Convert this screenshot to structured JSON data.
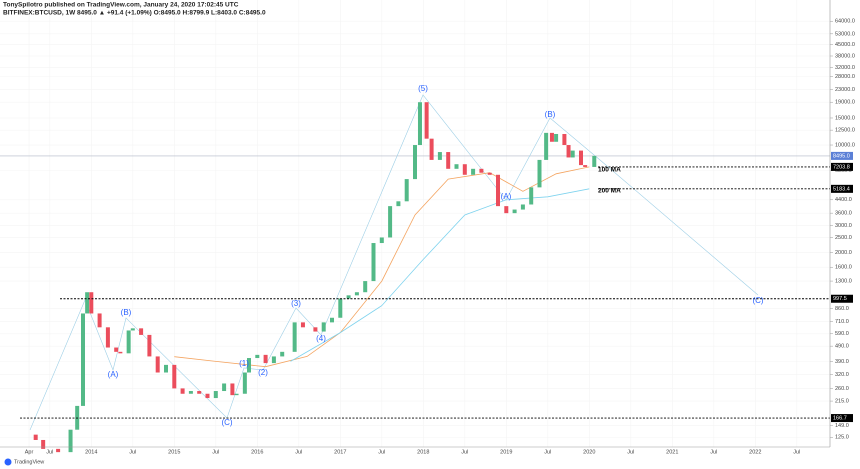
{
  "header": {
    "title": "TonySpilotro published on TradingView.com, January 24, 2020 17:02:45 UTC",
    "symbol": "BITFINEX:BTCUSD, 1W 8495.0 ▲ +91.4 (+1.09%) O:8495.0 H:8799.9 L:8403.0 C:8495.0"
  },
  "footer": {
    "brand": "TradingView"
  },
  "chart_data": {
    "type": "candlestick",
    "log_scale": true,
    "grid": true,
    "up_color": "#53b987",
    "down_color": "#eb4d5c",
    "x": [
      2013.25,
      2013.33,
      2013.42,
      2013.6,
      2013.75,
      2013.83,
      2013.9,
      2013.95,
      2014.0,
      2014.1,
      2014.2,
      2014.3,
      2014.35,
      2014.45,
      2014.5,
      2014.6,
      2014.7,
      2014.8,
      2014.9,
      2015.0,
      2015.1,
      2015.2,
      2015.3,
      2015.4,
      2015.5,
      2015.6,
      2015.7,
      2015.75,
      2015.85,
      2015.9,
      2016.0,
      2016.1,
      2016.2,
      2016.3,
      2016.45,
      2016.55,
      2016.7,
      2016.8,
      2016.9,
      2017.0,
      2017.1,
      2017.2,
      2017.3,
      2017.4,
      2017.5,
      2017.6,
      2017.7,
      2017.8,
      2017.9,
      2017.96,
      2018.04,
      2018.1,
      2018.2,
      2018.3,
      2018.4,
      2018.5,
      2018.6,
      2018.7,
      2018.8,
      2018.9,
      2019.0,
      2019.1,
      2019.2,
      2019.3,
      2019.4,
      2019.48,
      2019.55,
      2019.6,
      2019.7,
      2019.75,
      2019.8,
      2019.9,
      2019.95,
      2020.06
    ],
    "values": [
      130,
      120,
      105,
      100,
      140,
      200,
      800,
      1100,
      800,
      650,
      480,
      450,
      440,
      620,
      640,
      580,
      420,
      330,
      370,
      260,
      240,
      250,
      240,
      225,
      250,
      280,
      235,
      240,
      330,
      410,
      430,
      380,
      420,
      450,
      700,
      650,
      610,
      700,
      750,
      1000,
      1050,
      1100,
      1300,
      2300,
      2500,
      4000,
      4300,
      6000,
      10000,
      19000,
      11000,
      8000,
      9000,
      7000,
      7500,
      6400,
      7000,
      6600,
      6400,
      4000,
      3600,
      3800,
      4100,
      5300,
      8000,
      12000,
      10500,
      11800,
      10000,
      8300,
      9200,
      7400,
      7200,
      8495
    ],
    "moving_averages": [
      {
        "name": "100 MA",
        "color": "#f4a460",
        "x": [
          2015.0,
          2015.5,
          2016.1,
          2016.6,
          2017.0,
          2017.5,
          2017.9,
          2018.3,
          2018.8,
          2019.2,
          2019.6,
          2020.0
        ],
        "values": [
          418,
          390,
          360,
          420,
          600,
          1300,
          3500,
          6000,
          6600,
          5000,
          6500,
          7203.8
        ]
      },
      {
        "name": "200 MA",
        "color": "#7fd3ee",
        "x": [
          2016.4,
          2017.0,
          2017.5,
          2018.0,
          2018.5,
          2019.0,
          2019.5,
          2020.0
        ],
        "values": [
          390,
          600,
          900,
          1800,
          3500,
          4400,
          4600,
          5183.4
        ]
      }
    ],
    "levels": [
      997.5,
      166.7,
      7203.8,
      5183.4
    ],
    "last_price": {
      "value": 8495,
      "label": "8495.0"
    },
    "annotations": [
      "(5)",
      "(A)",
      "(B)",
      "(C)",
      "(1)",
      "(2)",
      "(3)",
      "(4)",
      "(A)",
      "(B)",
      "(C)"
    ],
    "xlim": [
      2012.9,
      2022.9
    ],
    "ylim": [
      108,
      88000
    ],
    "xticks": [
      {
        "value": 2013.25,
        "label": "Apr"
      },
      {
        "value": 2013.5,
        "label": "Jul"
      },
      {
        "value": 2014,
        "label": "2014"
      },
      {
        "value": 2014.5,
        "label": "Jul"
      },
      {
        "value": 2015,
        "label": "2015"
      },
      {
        "value": 2015.5,
        "label": "Jul"
      },
      {
        "value": 2016,
        "label": "2016"
      },
      {
        "value": 2016.5,
        "label": "Jul"
      },
      {
        "value": 2017,
        "label": "2017"
      },
      {
        "value": 2017.5,
        "label": "Jul"
      },
      {
        "value": 2018,
        "label": "2018"
      },
      {
        "value": 2018.5,
        "label": "Jul"
      },
      {
        "value": 2019,
        "label": "2019"
      },
      {
        "value": 2019.5,
        "label": "Jul"
      },
      {
        "value": 2020,
        "label": "2020"
      },
      {
        "value": 2020.5,
        "label": "Jul"
      },
      {
        "value": 2021,
        "label": "2021"
      },
      {
        "value": 2021.5,
        "label": "Jul"
      },
      {
        "value": 2022,
        "label": "2022"
      },
      {
        "value": 2022.5,
        "label": "Jul"
      }
    ],
    "yticks": [
      {
        "value": 64000,
        "label": "64000.0"
      },
      {
        "value": 53000,
        "label": "53000.0"
      },
      {
        "value": 45000,
        "label": "45000.0"
      },
      {
        "value": 38000,
        "label": "38000.0"
      },
      {
        "value": 32000,
        "label": "32000.0"
      },
      {
        "value": 28000,
        "label": "28000.0"
      },
      {
        "value": 23000,
        "label": "23000.0"
      },
      {
        "value": 19000,
        "label": "19000.0"
      },
      {
        "value": 15000,
        "label": "15000.0"
      },
      {
        "value": 12500,
        "label": "12500.0"
      },
      {
        "value": 10000,
        "label": "10000.0"
      },
      {
        "value": 6800,
        "label": "6800.0"
      },
      {
        "value": 4400,
        "label": "4400.0"
      },
      {
        "value": 3600,
        "label": "3600.0"
      },
      {
        "value": 3000,
        "label": "3000.0"
      },
      {
        "value": 2500,
        "label": "2500.0"
      },
      {
        "value": 2000,
        "label": "2000.0"
      },
      {
        "value": 1600,
        "label": "1600.0"
      },
      {
        "value": 1300,
        "label": "1300.0"
      },
      {
        "value": 860,
        "label": "860.0"
      },
      {
        "value": 710,
        "label": "710.0"
      },
      {
        "value": 590,
        "label": "590.0"
      },
      {
        "value": 490,
        "label": "490.0"
      },
      {
        "value": 390,
        "label": "390.0"
      },
      {
        "value": 320,
        "label": "320.0"
      },
      {
        "value": 260,
        "label": "260.0"
      },
      {
        "value": 215,
        "label": "215.0"
      },
      {
        "value": 149,
        "label": "149.0"
      },
      {
        "value": 125,
        "label": "125.0"
      }
    ]
  }
}
